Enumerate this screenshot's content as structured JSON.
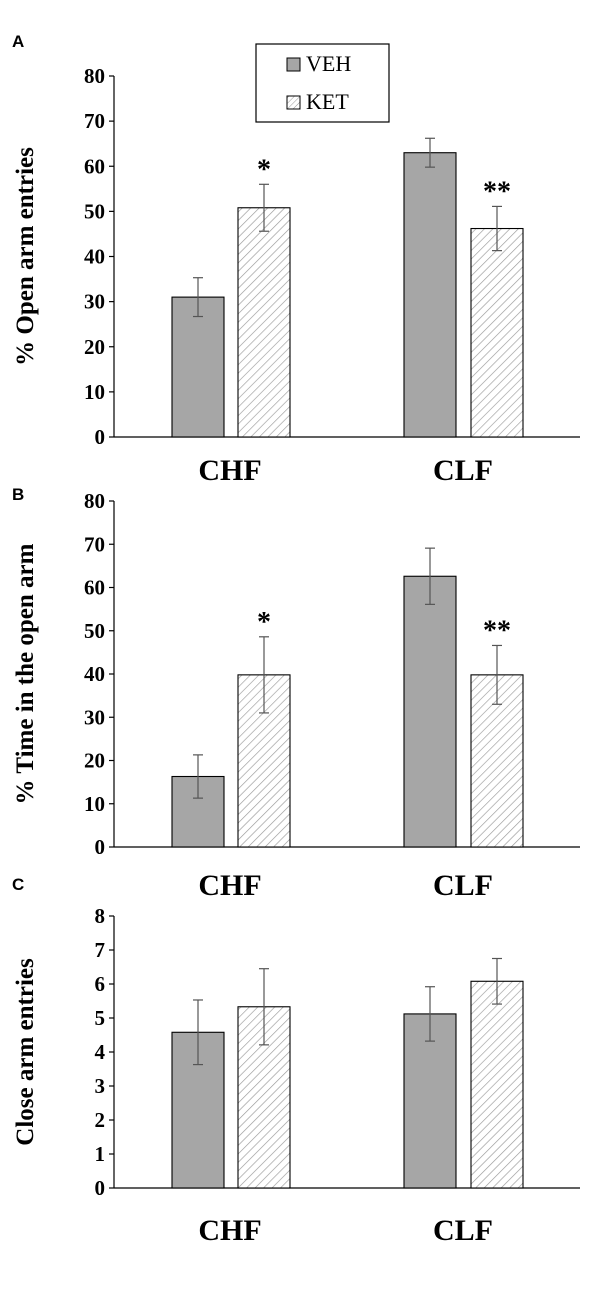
{
  "chart_data": [
    {
      "type": "bar",
      "panel_label": "A",
      "ylabel": "% Open arm entries",
      "categories": [
        "CHF",
        "CLF"
      ],
      "ylim": [
        0,
        80
      ],
      "yticks": [
        0,
        10,
        20,
        30,
        40,
        50,
        60,
        70,
        80
      ],
      "legend_position": "top-center",
      "series": [
        {
          "name": "VEH",
          "values": [
            31,
            63
          ],
          "errors": [
            4.3,
            3.2
          ],
          "fill": "#a6a6a6",
          "pattern": "solid"
        },
        {
          "name": "KET",
          "values": [
            50.8,
            46.2
          ],
          "errors": [
            5.2,
            4.9
          ],
          "fill": "#ffffff",
          "pattern": "hatch"
        }
      ],
      "annotations": [
        {
          "series": 1,
          "category": 0,
          "text": "*"
        },
        {
          "series": 1,
          "category": 1,
          "text": "**"
        }
      ]
    },
    {
      "type": "bar",
      "panel_label": "B",
      "ylabel": "% Time in the open arm",
      "categories": [
        "CHF",
        "CLF"
      ],
      "ylim": [
        0,
        80
      ],
      "yticks": [
        0,
        10,
        20,
        30,
        40,
        50,
        60,
        70,
        80
      ],
      "series": [
        {
          "name": "VEH",
          "values": [
            16.3,
            62.6
          ],
          "errors": [
            5,
            6.5
          ],
          "fill": "#a6a6a6",
          "pattern": "solid"
        },
        {
          "name": "KET",
          "values": [
            39.8,
            39.8
          ],
          "errors": [
            8.8,
            6.8
          ],
          "fill": "#ffffff",
          "pattern": "hatch"
        }
      ],
      "annotations": [
        {
          "series": 1,
          "category": 0,
          "text": "*"
        },
        {
          "series": 1,
          "category": 1,
          "text": "**"
        }
      ]
    },
    {
      "type": "bar",
      "panel_label": "C",
      "ylabel": "Close arm entries",
      "categories": [
        "CHF",
        "CLF"
      ],
      "ylim": [
        0,
        8
      ],
      "yticks": [
        0,
        1,
        2,
        3,
        4,
        5,
        6,
        7,
        8
      ],
      "series": [
        {
          "name": "VEH",
          "values": [
            4.58,
            5.12
          ],
          "errors": [
            0.95,
            0.8
          ],
          "fill": "#a6a6a6",
          "pattern": "solid"
        },
        {
          "name": "KET",
          "values": [
            5.33,
            6.08
          ],
          "errors": [
            1.12,
            0.67
          ],
          "fill": "#ffffff",
          "pattern": "hatch"
        }
      ],
      "annotations": []
    }
  ]
}
